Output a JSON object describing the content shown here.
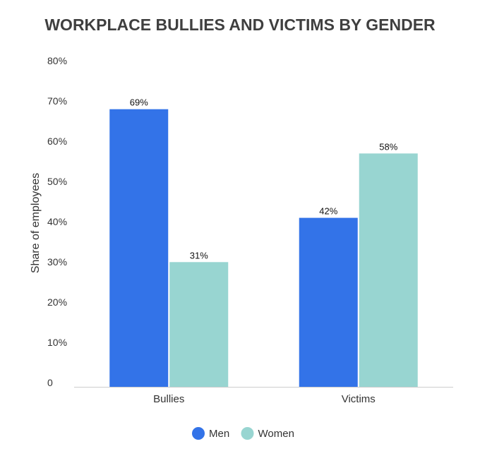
{
  "chart_data": {
    "type": "bar",
    "title": "WORKPLACE BULLIES AND VICTIMS BY GENDER",
    "xlabel": "",
    "ylabel": "Share of employees",
    "categories": [
      "Bullies",
      "Victims"
    ],
    "series": [
      {
        "name": "Men",
        "values": [
          69,
          42
        ],
        "labels": [
          "69%",
          "42%"
        ],
        "color": "#3373E8"
      },
      {
        "name": "Women",
        "values": [
          31,
          58
        ],
        "labels": [
          "31%",
          "58%"
        ],
        "color": "#98D5D1"
      }
    ],
    "ylim": [
      0,
      80
    ],
    "yticks": [
      0,
      10,
      20,
      30,
      40,
      50,
      60,
      70,
      80
    ],
    "ytick_labels": [
      "0",
      "10%",
      "20%",
      "30%",
      "40%",
      "50%",
      "60%",
      "70%",
      "80%"
    ],
    "grid": false,
    "legend_position": "bottom-center"
  },
  "colors": {
    "title": "#3f3f3f",
    "text": "#333333",
    "axis": "#cccccc"
  }
}
